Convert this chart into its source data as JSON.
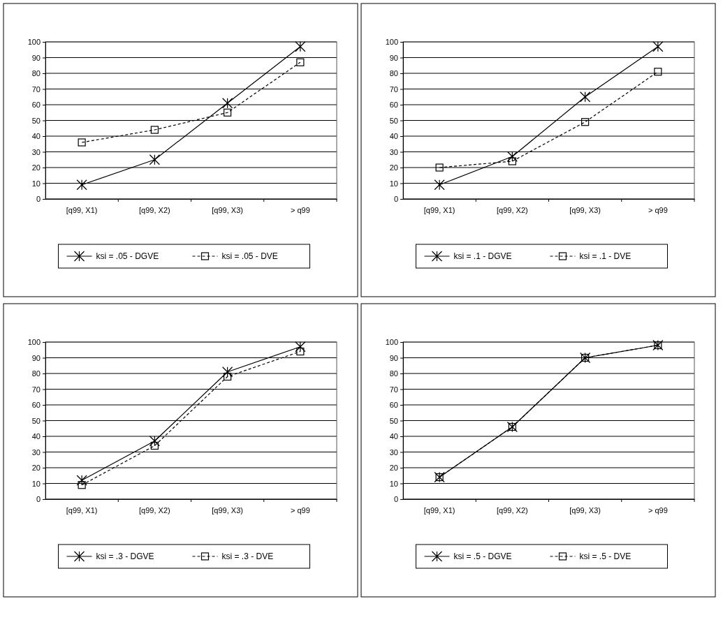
{
  "chart_data": [
    {
      "type": "line",
      "categories": [
        "[q99, X1)",
        "[q99, X2)",
        "[q99, X3)",
        "> q99"
      ],
      "ylim": [
        0,
        100
      ],
      "yticks": [
        0,
        10,
        20,
        30,
        40,
        50,
        60,
        70,
        80,
        90,
        100
      ],
      "grid": "y",
      "legend": "bottom",
      "series": [
        {
          "name": "ksi = .05 - DGVE",
          "color": "#000000",
          "marker": "cross",
          "line_style": "solid",
          "values": [
            9,
            25,
            61,
            97
          ]
        },
        {
          "name": "ksi = .05 - DVE",
          "color": "#000000",
          "marker": "square",
          "line_style": "dashed",
          "values": [
            36,
            44,
            55,
            87
          ]
        }
      ]
    },
    {
      "type": "line",
      "categories": [
        "[q99, X1)",
        "[q99, X2)",
        "[q99, X3)",
        "> q99"
      ],
      "ylim": [
        0,
        100
      ],
      "yticks": [
        0,
        10,
        20,
        30,
        40,
        50,
        60,
        70,
        80,
        90,
        100
      ],
      "grid": "y",
      "legend": "bottom",
      "series": [
        {
          "name": "ksi = .1 - DGVE",
          "color": "#000000",
          "marker": "cross",
          "line_style": "solid",
          "values": [
            9,
            27,
            65,
            97
          ]
        },
        {
          "name": "ksi = .1 - DVE",
          "color": "#000000",
          "marker": "square",
          "line_style": "dashed",
          "values": [
            20,
            24,
            49,
            81
          ]
        }
      ]
    },
    {
      "type": "line",
      "categories": [
        "[q99, X1)",
        "[q99, X2)",
        "[q99, X3)",
        "> q99"
      ],
      "ylim": [
        0,
        100
      ],
      "yticks": [
        0,
        10,
        20,
        30,
        40,
        50,
        60,
        70,
        80,
        90,
        100
      ],
      "grid": "y",
      "legend": "bottom",
      "series": [
        {
          "name": "ksi = .3 - DGVE",
          "color": "#000000",
          "marker": "cross",
          "line_style": "solid",
          "values": [
            12,
            37,
            81,
            97
          ]
        },
        {
          "name": "ksi = .3 - DVE",
          "color": "#000000",
          "marker": "square",
          "line_style": "dashed",
          "values": [
            9,
            34,
            78,
            94
          ]
        }
      ]
    },
    {
      "type": "line",
      "categories": [
        "[q99, X1)",
        "[q99, X2)",
        "[q99, X3)",
        "> q99"
      ],
      "ylim": [
        0,
        100
      ],
      "yticks": [
        0,
        10,
        20,
        30,
        40,
        50,
        60,
        70,
        80,
        90,
        100
      ],
      "grid": "y",
      "legend": "bottom",
      "series": [
        {
          "name": "ksi = .5 - DGVE",
          "color": "#000000",
          "marker": "cross",
          "line_style": "solid",
          "values": [
            14,
            46,
            90,
            98
          ]
        },
        {
          "name": "ksi = .5 - DVE",
          "color": "#000000",
          "marker": "square",
          "line_style": "dashed",
          "values": [
            14,
            46,
            90,
            98
          ]
        }
      ]
    }
  ]
}
